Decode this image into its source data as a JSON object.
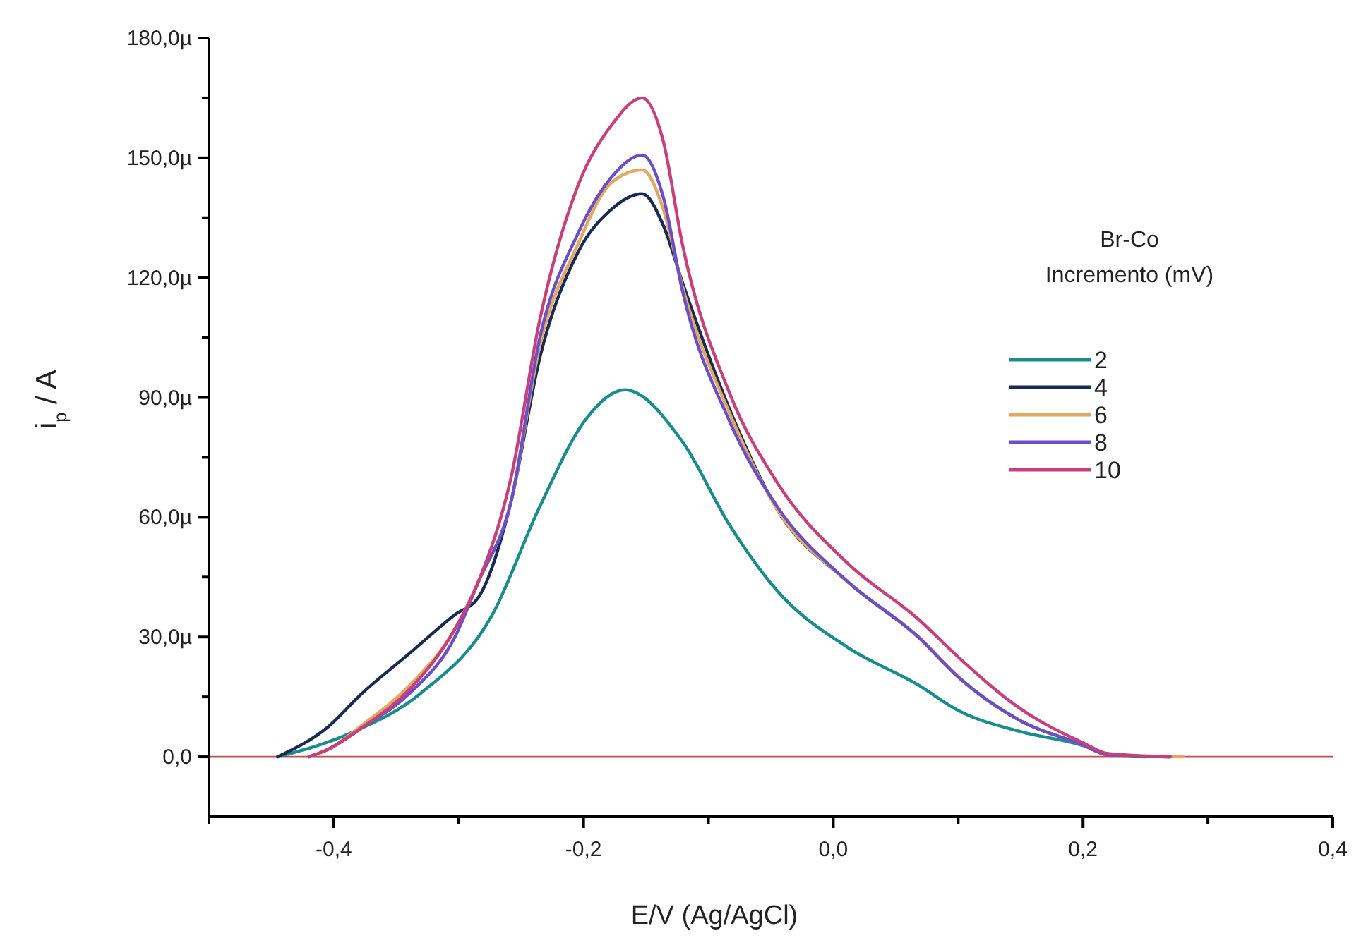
{
  "chart_data": {
    "type": "line",
    "xlabel": "E/V (Ag/AgCl)",
    "ylabel": "i$_{p}$ / A",
    "legend_title": "Br-Co\nIncremento (mV)",
    "legend": "right",
    "xlim": [
      -0.5,
      0.4
    ],
    "ylim": [
      -15,
      180
    ],
    "xticks": [
      {
        "value": -0.5,
        "label": null
      },
      {
        "value": -0.4,
        "label": "-0,4"
      },
      {
        "value": -0.3,
        "label": null
      },
      {
        "value": -0.2,
        "label": "-0,2"
      },
      {
        "value": -0.1,
        "label": null
      },
      {
        "value": 0,
        "label": "0,0"
      },
      {
        "value": 0.1,
        "label": null
      },
      {
        "value": 0.2,
        "label": "0,2"
      },
      {
        "value": 0.3,
        "label": null
      },
      {
        "value": 0.4,
        "label": "0,4"
      }
    ],
    "yticks": [
      {
        "value": 0,
        "label": "0,0"
      },
      {
        "value": 15,
        "label": null
      },
      {
        "value": 30,
        "label": "30,0µ"
      },
      {
        "value": 45,
        "label": null
      },
      {
        "value": 60,
        "label": "60,0µ"
      },
      {
        "value": 75,
        "label": null
      },
      {
        "value": 90,
        "label": "90,0µ"
      },
      {
        "value": 105,
        "label": null
      },
      {
        "value": 120,
        "label": "120,0µ"
      },
      {
        "value": 135,
        "label": null
      },
      {
        "value": 150,
        "label": "150,0µ"
      },
      {
        "value": 165,
        "label": null
      },
      {
        "value": 180,
        "label": "180,0µ"
      }
    ],
    "ref_lines": [
      {
        "axis": "y",
        "value": 0,
        "color": "#c0504d"
      }
    ],
    "series": [
      {
        "name": "2",
        "color": "#1a8c8c",
        "x": [
          -0.445,
          -0.386,
          -0.33,
          -0.273,
          -0.235,
          -0.197,
          -0.167,
          -0.121,
          -0.083,
          -0.045,
          0.011,
          0.068,
          0.1,
          0.15,
          0.2,
          0.22,
          0.25
        ],
        "values": [
          0,
          6,
          16,
          35.6,
          62.7,
          85,
          91.9,
          79,
          58,
          41.6,
          27.5,
          18,
          11.6,
          6.3,
          2.8,
          0.5,
          0
        ]
      },
      {
        "name": "4",
        "color": "#1b2a55",
        "x": [
          -0.445,
          -0.405,
          -0.377,
          -0.339,
          -0.303,
          -0.284,
          -0.258,
          -0.235,
          -0.205,
          -0.178,
          -0.153,
          -0.136,
          -0.121,
          -0.083,
          -0.045,
          0.011,
          0.068,
          0.1,
          0.15,
          0.2,
          0.22,
          0.27
        ],
        "values": [
          0,
          7.4,
          16,
          26,
          35.6,
          40,
          64,
          100,
          126,
          137,
          141,
          133,
          119,
          87,
          62,
          44,
          30,
          20,
          9,
          3,
          0.5,
          0
        ]
      },
      {
        "name": "6",
        "color": "#e0a860",
        "x": [
          -0.42,
          -0.405,
          -0.377,
          -0.339,
          -0.303,
          -0.284,
          -0.258,
          -0.235,
          -0.205,
          -0.178,
          -0.153,
          -0.136,
          -0.121,
          -0.083,
          -0.045,
          0.011,
          0.068,
          0.1,
          0.15,
          0.2,
          0.22,
          0.28
        ],
        "values": [
          0,
          1.8,
          8,
          18,
          32,
          44,
          64,
          103,
          128,
          143.7,
          147,
          137,
          118,
          86,
          62,
          44,
          30,
          20,
          9,
          3,
          0.5,
          0
        ]
      },
      {
        "name": "8",
        "color": "#6a4fc8",
        "x": [
          -0.42,
          -0.405,
          -0.377,
          -0.339,
          -0.303,
          -0.284,
          -0.258,
          -0.235,
          -0.205,
          -0.178,
          -0.153,
          -0.136,
          -0.121,
          -0.083,
          -0.045,
          0.011,
          0.068,
          0.1,
          0.15,
          0.2,
          0.22,
          0.27
        ],
        "values": [
          0,
          1.8,
          7.4,
          16,
          30,
          44,
          64,
          105,
          130.7,
          145,
          150.7,
          140,
          117,
          84,
          62.7,
          44,
          30,
          20,
          9,
          3,
          0.5,
          0
        ]
      },
      {
        "name": "10",
        "color": "#c8407a",
        "x": [
          -0.42,
          -0.405,
          -0.377,
          -0.339,
          -0.303,
          -0.284,
          -0.258,
          -0.235,
          -0.205,
          -0.178,
          -0.153,
          -0.136,
          -0.121,
          -0.083,
          -0.045,
          0.011,
          0.068,
          0.1,
          0.15,
          0.2,
          0.22,
          0.27
        ],
        "values": [
          0,
          1.8,
          7.4,
          17,
          32,
          44,
          70,
          109.5,
          142.6,
          158,
          165,
          154,
          128.6,
          91,
          68.7,
          48.6,
          34.5,
          25,
          12,
          3.5,
          0.8,
          0
        ]
      }
    ]
  }
}
